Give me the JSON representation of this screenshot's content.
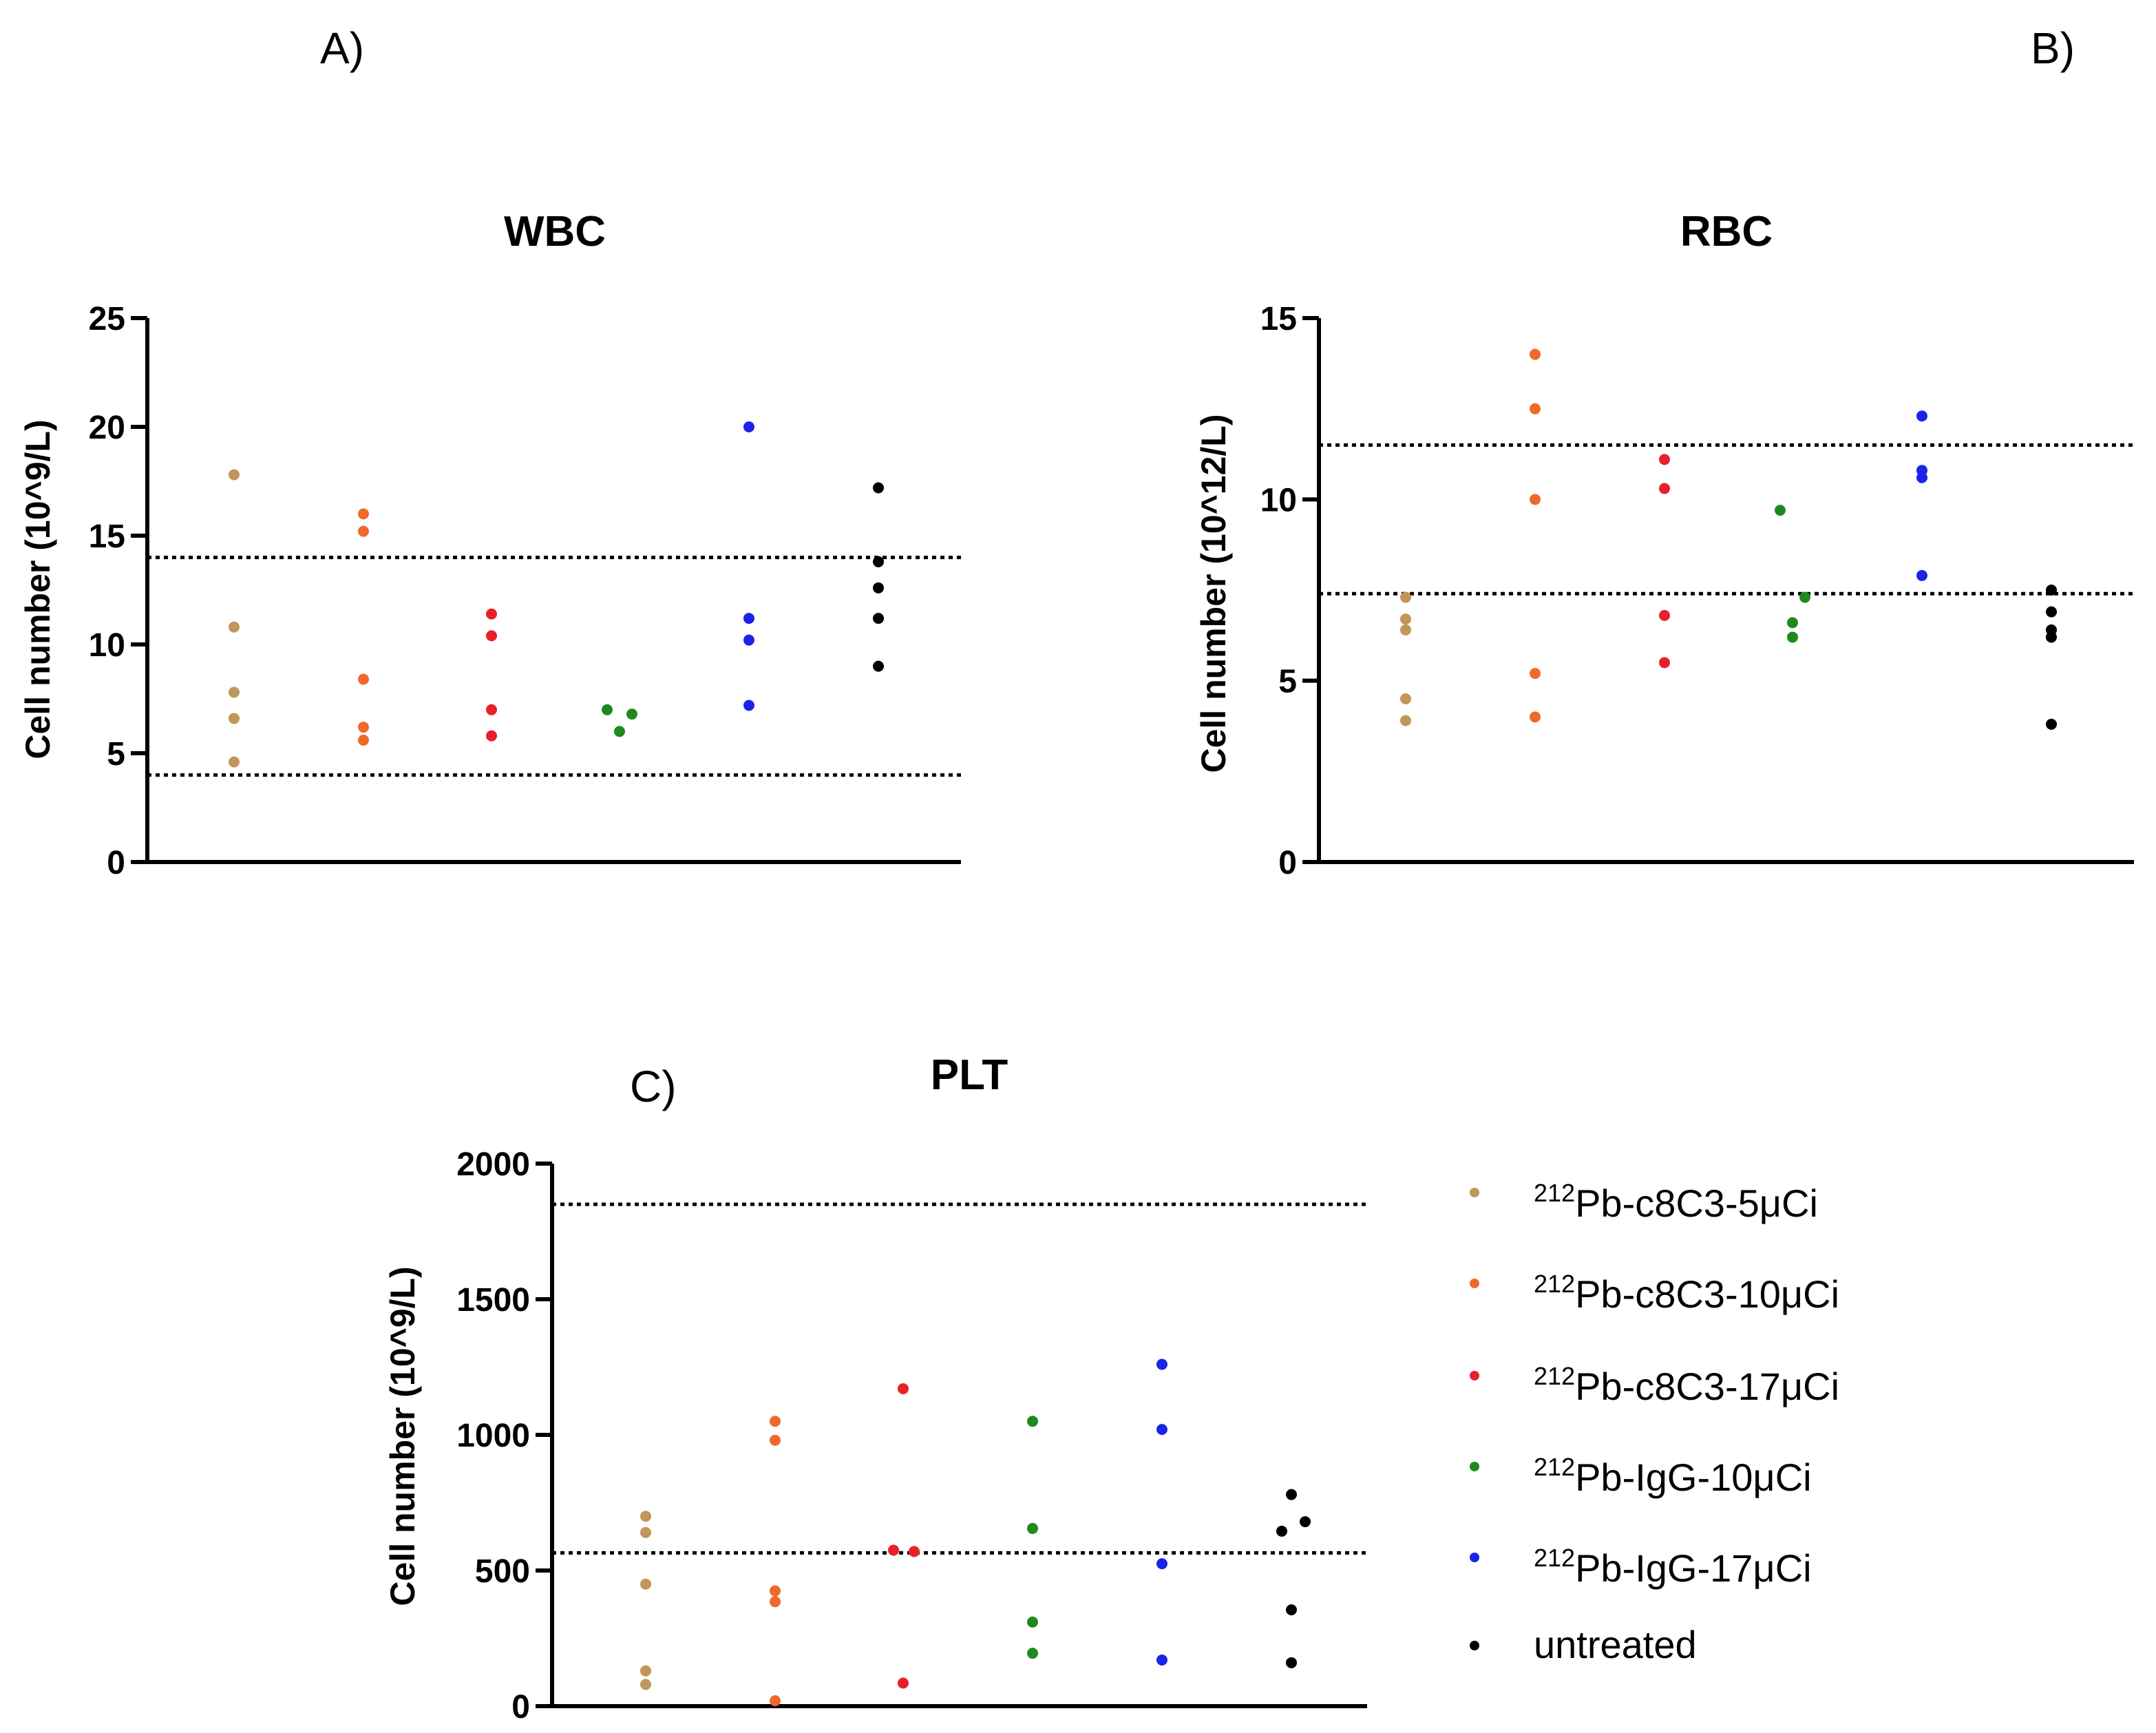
{
  "panel_letters": [
    "A)",
    "B)",
    "C)"
  ],
  "colors": {
    "axis": "#000000",
    "reference_line": "#000000"
  },
  "legend": {
    "items": [
      {
        "sup": "212",
        "text": "Pb-c8C3-5μCi",
        "color": "#c0965a"
      },
      {
        "sup": "212",
        "text": "Pb-c8C3-10μCi",
        "color": "#ef6a2a"
      },
      {
        "sup": "212",
        "text": "Pb-c8C3-17μCi",
        "color": "#e8202a"
      },
      {
        "sup": "212",
        "text": "Pb-IgG-10μCi",
        "color": "#1e8a1e"
      },
      {
        "sup": "212",
        "text": "Pb-IgG-17μCi",
        "color": "#1a24e8"
      },
      {
        "sup": "",
        "text": "untreated",
        "color": "#000000"
      }
    ]
  },
  "chart_data": [
    {
      "type": "scatter",
      "panel": "A)",
      "title": "WBC",
      "ylabel": "Cell number (10^9/L)",
      "ylim": [
        0,
        25
      ],
      "yticks": [
        "0",
        "5",
        "10",
        "15",
        "20",
        "25"
      ],
      "reference_lines": [
        4,
        14
      ],
      "series": [
        {
          "values": [
            17.8,
            10.8,
            7.8,
            6.6,
            4.6
          ]
        },
        {
          "values": [
            16.0,
            15.2,
            8.4,
            6.2,
            5.6
          ]
        },
        {
          "values": [
            11.4,
            10.4,
            7.0,
            5.8
          ]
        },
        {
          "values": [
            7.0,
            6.8,
            6.0
          ]
        },
        {
          "values": [
            20.0,
            11.2,
            10.2,
            7.2
          ]
        },
        {
          "values": [
            17.2,
            13.8,
            12.6,
            11.2,
            9.0
          ]
        }
      ]
    },
    {
      "type": "scatter",
      "panel": "B)",
      "title": "RBC",
      "ylabel": "Cell number (10^12/L)",
      "ylim": [
        0,
        15
      ],
      "yticks": [
        "0",
        "5",
        "10",
        "15"
      ],
      "reference_lines": [
        7.4,
        11.5
      ],
      "series": [
        {
          "values": [
            7.3,
            6.7,
            6.4,
            4.5,
            3.9
          ]
        },
        {
          "values": [
            14.0,
            12.5,
            10.0,
            5.2,
            4.0
          ]
        },
        {
          "values": [
            11.1,
            10.3,
            6.8,
            5.5
          ]
        },
        {
          "values": [
            9.7,
            7.3,
            6.6,
            6.2
          ]
        },
        {
          "values": [
            12.3,
            10.8,
            10.6,
            7.9
          ]
        },
        {
          "values": [
            7.5,
            6.9,
            6.4,
            6.2,
            3.8
          ]
        }
      ]
    },
    {
      "type": "scatter",
      "panel": "C)",
      "title": "PLT",
      "ylabel": "Cell number (10^9/L)",
      "ylim": [
        0,
        2000
      ],
      "yticks": [
        "0",
        "500",
        "1000",
        "1500",
        "2000"
      ],
      "reference_lines": [
        565,
        1850
      ],
      "series": [
        {
          "values": [
            700,
            640,
            450,
            130,
            80
          ]
        },
        {
          "values": [
            1050,
            980,
            425,
            385,
            20
          ]
        },
        {
          "values": [
            1170,
            575,
            570,
            85
          ]
        },
        {
          "values": [
            1050,
            655,
            310,
            195
          ]
        },
        {
          "values": [
            1260,
            1020,
            525,
            170
          ]
        },
        {
          "values": [
            780,
            680,
            645,
            355,
            160
          ]
        }
      ]
    }
  ]
}
